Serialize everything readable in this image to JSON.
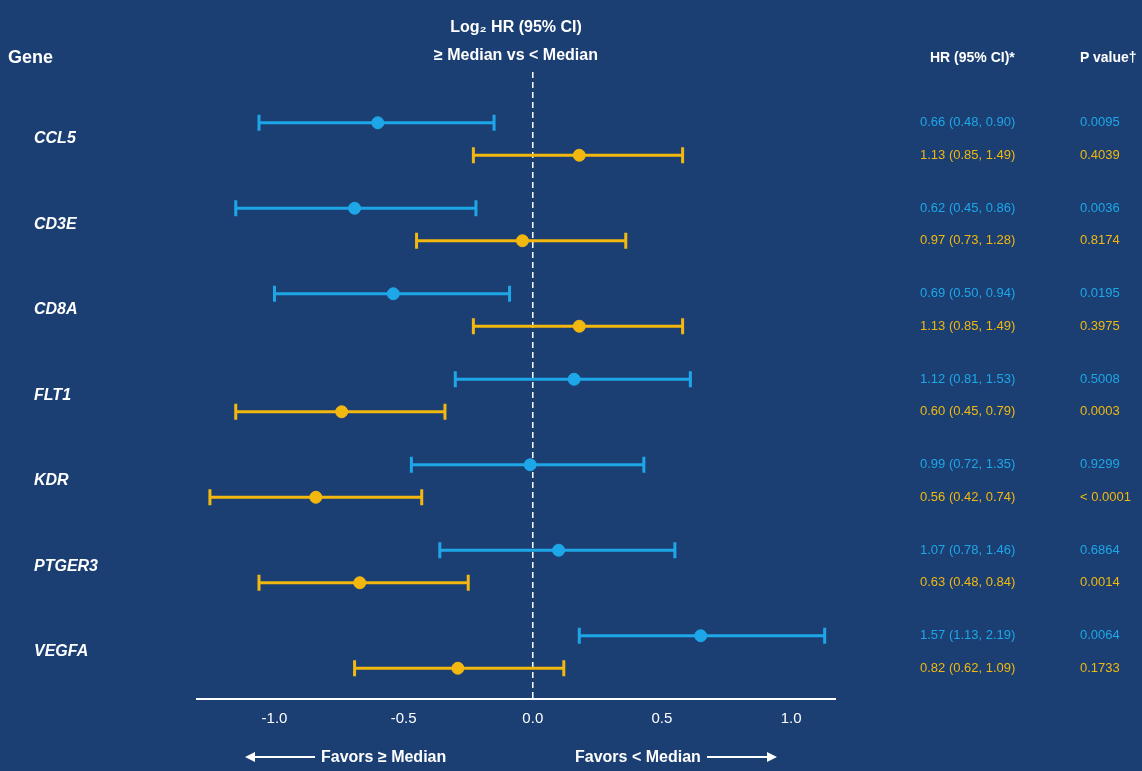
{
  "chart_data": {
    "type": "scatter",
    "orientation": "horizontal",
    "title": "Log₂ HR (95% CI)",
    "subtitle": "≥ Median vs < Median",
    "ylabel": "Gene",
    "categories": [
      "CCL5",
      "CD3E",
      "CD8A",
      "FLT1",
      "KDR",
      "PTGER3",
      "VEGFA"
    ],
    "series": [
      {
        "color": "#1ea7e8",
        "values": [
          -0.6,
          -0.69,
          -0.54,
          0.16,
          -0.01,
          0.1,
          0.65
        ],
        "errors": [
          [
            -1.06,
            -0.15
          ],
          [
            -1.15,
            -0.22
          ],
          [
            -1.0,
            -0.09
          ],
          [
            -0.3,
            0.61
          ],
          [
            -0.47,
            0.43
          ],
          [
            -0.36,
            0.55
          ],
          [
            0.18,
            1.13
          ]
        ]
      },
      {
        "color": "#f2b80f",
        "values": [
          0.18,
          -0.04,
          0.18,
          -0.74,
          -0.84,
          -0.67,
          -0.29
        ],
        "errors": [
          [
            -0.23,
            0.58
          ],
          [
            -0.45,
            0.36
          ],
          [
            -0.23,
            0.58
          ],
          [
            -1.15,
            -0.34
          ],
          [
            -1.25,
            -0.43
          ],
          [
            -1.06,
            -0.25
          ],
          [
            -0.69,
            0.12
          ]
        ]
      }
    ],
    "xlim": [
      -1.3,
      1.17
    ],
    "xticks": [
      {
        "value": -1,
        "label": "-1.0"
      },
      -0.5,
      {
        "value": 0,
        "label": "0.0"
      },
      0.5,
      {
        "value": 1,
        "label": "1.0"
      }
    ],
    "ref_lines": [
      {
        "axis": "x",
        "value": 0,
        "color": "#ffffff",
        "line_style": "dashed"
      }
    ],
    "marker": "circle",
    "grid": false,
    "annotations": [
      "HR (95% CI)*",
      "P value†",
      "Favors ≥ Median",
      "Favors < Median",
      "0.66 (0.48, 0.90)",
      "0.0095",
      "1.13 (0.85, 1.49)",
      "0.4039",
      "0.62 (0.45, 0.86)",
      "0.0036",
      "0.97 (0.73, 1.28)",
      "0.8174",
      "0.69 (0.50, 0.94)",
      "0.0195",
      "1.13 (0.85, 1.49)",
      "0.3975",
      "1.12 (0.81, 1.53)",
      "0.5008",
      "0.60 (0.45, 0.79)",
      "0.0003",
      "0.99 (0.72, 1.35)",
      "0.9299",
      "0.56 (0.42, 0.74)",
      "< 0.0001",
      "1.07 (0.78, 1.46)",
      "0.6864",
      "0.63 (0.48, 0.84)",
      "0.0014",
      "1.57 (1.13, 2.19)",
      "0.0064",
      "0.82 (0.62, 1.09)",
      "0.1733"
    ]
  }
}
